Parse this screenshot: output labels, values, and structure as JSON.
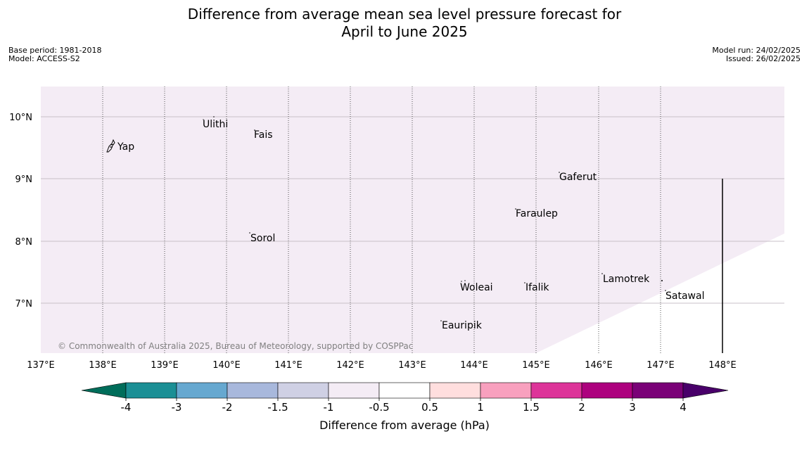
{
  "title": {
    "line1": "Difference from average mean sea level pressure forecast for",
    "line2": "April to June 2025"
  },
  "meta_left": {
    "base_period": "Base period: 1981-2018",
    "model": "Model: ACCESS-S2"
  },
  "meta_right": {
    "model_run": "Model run: 24/02/2025",
    "issued": "Issued: 26/02/2025"
  },
  "map": {
    "lat_ticks": [
      "10°N",
      "9°N",
      "8°N",
      "7°N"
    ],
    "lon_ticks": [
      "137°E",
      "138°E",
      "139°E",
      "140°E",
      "141°E",
      "142°E",
      "143°E",
      "144°E",
      "145°E",
      "146°E",
      "147°E",
      "148°E"
    ],
    "places": [
      {
        "name": "Yap"
      },
      {
        "name": "Ulithi"
      },
      {
        "name": "Fais"
      },
      {
        "name": "Gaferut"
      },
      {
        "name": "Faraulep"
      },
      {
        "name": "Sorol"
      },
      {
        "name": "Lamotrek"
      },
      {
        "name": "Woleai"
      },
      {
        "name": "Ifalik"
      },
      {
        "name": "Satawal"
      },
      {
        "name": "Eauripik"
      }
    ],
    "fill_category": "-1 to -0.5",
    "fill_color": "#f4ecf5",
    "copyright": "© Commonwealth of Australia 2025, Bureau of Meteorology, supported by COSPPac"
  },
  "colorbar": {
    "label": "Difference from average (hPa)",
    "tick_labels": [
      "-4",
      "-3",
      "-2",
      "-1.5",
      "-1",
      "-0.5",
      "0.5",
      "1",
      "1.5",
      "2",
      "3",
      "4"
    ],
    "low_extend_color": "#006d5a",
    "colors": [
      "#1b8f95",
      "#66a8d0",
      "#a8b8dc",
      "#cfd0e4",
      "#f4ecf5",
      "#ffffff",
      "#ffdede",
      "#f8a0be",
      "#dd3499",
      "#ad017e",
      "#7a0177"
    ],
    "high_extend_color": "#49006a"
  }
}
